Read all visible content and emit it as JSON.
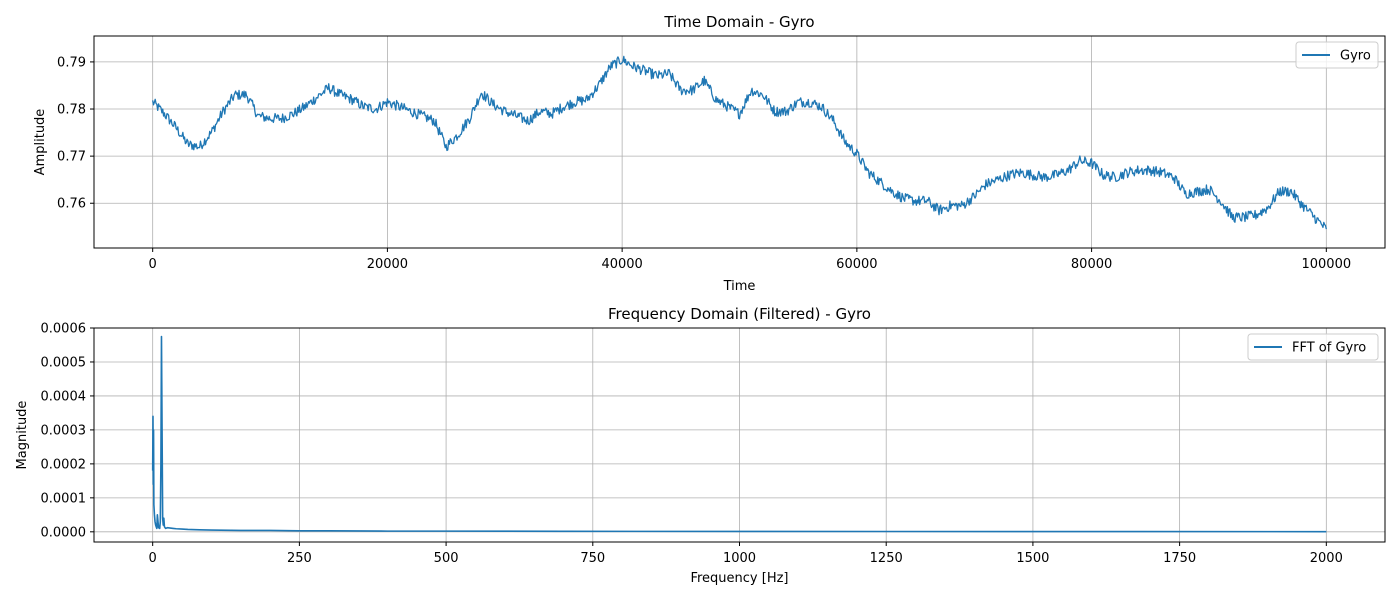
{
  "colors": {
    "series": "#1f77b4",
    "grid": "#b0b0b0",
    "axes": "#000000",
    "background": "#ffffff",
    "legend_border": "#cccccc"
  },
  "chart_data": [
    {
      "type": "line",
      "title": "Time Domain - Gyro",
      "xlabel": "Time",
      "ylabel": "Amplitude",
      "xlim": [
        -5000,
        105000
      ],
      "ylim": [
        0.7505,
        0.7955
      ],
      "xticks": [
        0,
        20000,
        40000,
        60000,
        80000,
        100000
      ],
      "xtick_labels": [
        "0",
        "20000",
        "40000",
        "60000",
        "80000",
        "100000"
      ],
      "yticks": [
        0.76,
        0.77,
        0.78,
        0.79
      ],
      "ytick_labels": [
        "0.76",
        "0.77",
        "0.78",
        "0.79"
      ],
      "grid": true,
      "legend_position": "upper right",
      "series": [
        {
          "name": "Gyro",
          "noise": 0.0011,
          "x": [
            0,
            1000,
            2000,
            3000,
            4000,
            5000,
            6000,
            7000,
            8000,
            9000,
            10000,
            11000,
            12000,
            13000,
            14000,
            15000,
            16000,
            17000,
            18000,
            19000,
            20000,
            21000,
            22000,
            23000,
            24000,
            25000,
            26000,
            27000,
            28000,
            29000,
            30000,
            31000,
            32000,
            33000,
            34000,
            35000,
            36000,
            37000,
            38000,
            39000,
            40000,
            41000,
            42000,
            43000,
            44000,
            45000,
            46000,
            47000,
            48000,
            49000,
            50000,
            51000,
            52000,
            53000,
            54000,
            55000,
            56000,
            57000,
            58000,
            59000,
            60000,
            61000,
            62000,
            63000,
            64000,
            65000,
            66000,
            67000,
            68000,
            69000,
            70000,
            71000,
            72000,
            73000,
            74000,
            75000,
            76000,
            77000,
            78000,
            79000,
            80000,
            81000,
            82000,
            83000,
            84000,
            85000,
            86000,
            87000,
            88000,
            89000,
            90000,
            91000,
            92000,
            93000,
            94000,
            95000,
            96000,
            97000,
            98000,
            99000,
            100000
          ],
          "y": [
            0.7815,
            0.779,
            0.776,
            0.7725,
            0.772,
            0.775,
            0.7795,
            0.783,
            0.783,
            0.7785,
            0.778,
            0.778,
            0.779,
            0.7805,
            0.7825,
            0.7845,
            0.783,
            0.782,
            0.7805,
            0.78,
            0.7815,
            0.7805,
            0.7795,
            0.7785,
            0.7775,
            0.772,
            0.7745,
            0.778,
            0.7835,
            0.781,
            0.7795,
            0.7785,
            0.7775,
            0.7795,
            0.779,
            0.7805,
            0.7815,
            0.782,
            0.785,
            0.789,
            0.7905,
            0.789,
            0.788,
            0.787,
            0.7875,
            0.784,
            0.784,
            0.786,
            0.782,
            0.7805,
            0.779,
            0.784,
            0.783,
            0.7795,
            0.7795,
            0.7815,
            0.7815,
            0.7805,
            0.7775,
            0.773,
            0.7705,
            0.7665,
            0.7645,
            0.7625,
            0.761,
            0.7605,
            0.7605,
            0.7585,
            0.7595,
            0.7595,
            0.7615,
            0.764,
            0.765,
            0.766,
            0.7665,
            0.766,
            0.7655,
            0.766,
            0.767,
            0.769,
            0.7685,
            0.766,
            0.7655,
            0.7665,
            0.767,
            0.767,
            0.7665,
            0.7655,
            0.762,
            0.7625,
            0.763,
            0.7605,
            0.757,
            0.757,
            0.7575,
            0.759,
            0.7625,
            0.7625,
            0.7595,
            0.757,
            0.7545
          ]
        }
      ]
    },
    {
      "type": "line",
      "title": "Frequency Domain (Filtered) - Gyro",
      "xlabel": "Frequency [Hz]",
      "ylabel": "Magnitude",
      "xlim": [
        -100,
        2100
      ],
      "ylim": [
        -3e-05,
        0.0006
      ],
      "xticks": [
        0,
        250,
        500,
        750,
        1000,
        1250,
        1500,
        1750,
        2000
      ],
      "xtick_labels": [
        "0",
        "250",
        "500",
        "750",
        "1000",
        "1250",
        "1500",
        "1750",
        "2000"
      ],
      "yticks": [
        0.0,
        0.0001,
        0.0002,
        0.0003,
        0.0004,
        0.0005,
        0.0006
      ],
      "ytick_labels": [
        "0.0000",
        "0.0001",
        "0.0002",
        "0.0003",
        "0.0004",
        "0.0005",
        "0.0006"
      ],
      "grid": true,
      "legend_position": "upper right",
      "series": [
        {
          "name": "FFT of Gyro",
          "x": [
            0,
            0.5,
            1,
            1.5,
            2,
            3,
            4,
            5,
            6,
            7,
            8,
            10,
            12,
            13,
            14,
            15,
            16,
            17,
            18,
            19,
            20,
            22,
            25,
            30,
            35,
            40,
            50,
            60,
            80,
            100,
            150,
            200,
            250,
            300,
            400,
            500,
            700,
            1000,
            1500,
            2000
          ],
          "y": [
            0.00018,
            0.00034,
            0.00014,
            0.0003,
            8e-05,
            5e-05,
            3e-05,
            2e-05,
            1.5e-05,
            1e-05,
            5e-05,
            1.2e-05,
            1e-05,
            3e-05,
            0.0002,
            0.000575,
            0.0003,
            4e-05,
            2e-05,
            4e-05,
            1.5e-05,
            1e-05,
            1.2e-05,
            1.1e-05,
            1e-05,
            9e-06,
            8e-06,
            7e-06,
            6e-06,
            5e-06,
            4e-06,
            4e-06,
            3e-06,
            3e-06,
            2e-06,
            2e-06,
            1.5e-06,
            1e-06,
            8e-07,
            5e-07
          ]
        }
      ]
    }
  ]
}
